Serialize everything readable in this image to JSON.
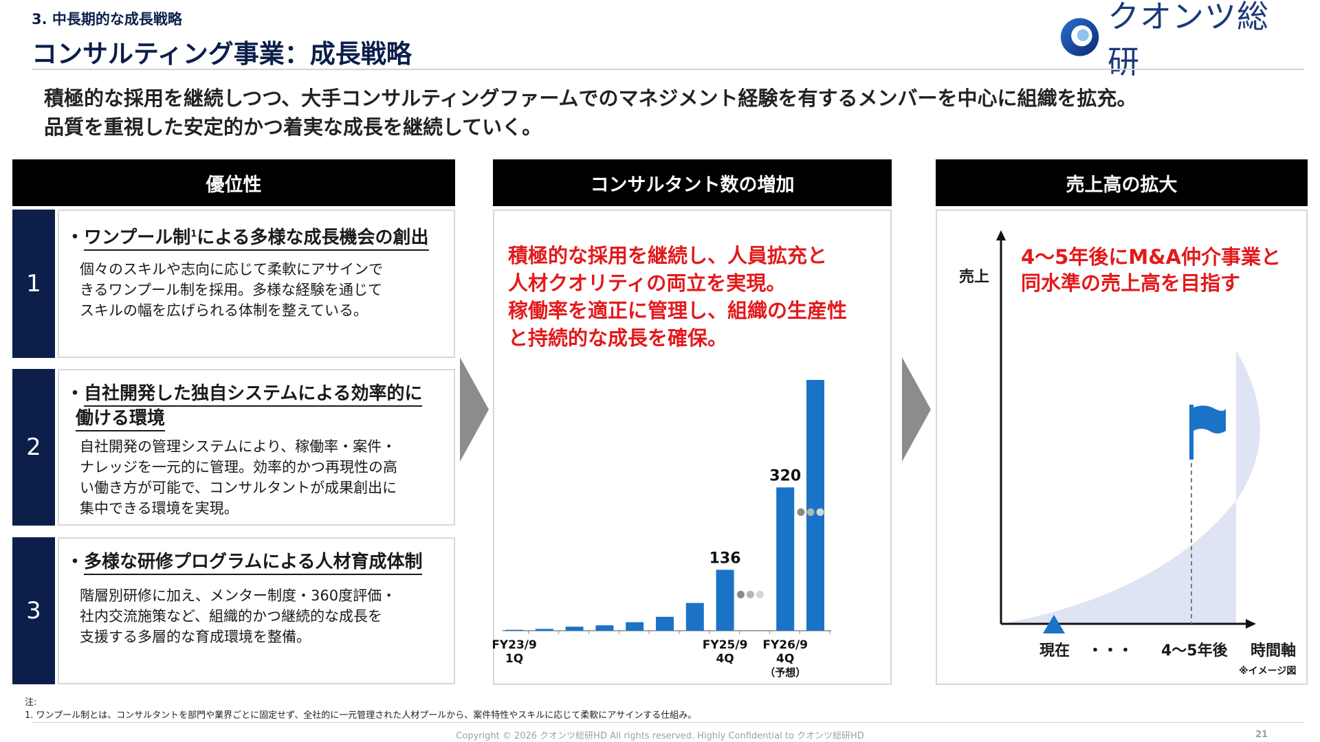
{
  "header": {
    "section_label": "3. 中長期的な成長戦略",
    "title": "コンサルティング事業：成長戦略",
    "logo_text": "クオンツ総研"
  },
  "lead": {
    "line1": "積極的な採用を継続しつつ、大手コンサルティングファームでのマネジメント経験を有するメンバーを中心に組織を拡充。",
    "line2": "品質を重視した安定的かつ着実な成長を継続していく。"
  },
  "columns": {
    "advantages_title": "優位性",
    "consultants_title": "コンサルタント数の増加",
    "sales_title": "売上高の拡大"
  },
  "advantages": [
    {
      "number": "1",
      "bullet": "・",
      "title_a": "ワンプール制",
      "title_sup": "1",
      "title_b": "による多様な成長機会の創出",
      "body": [
        "個々のスキルや志向に応じて柔軟にアサインで",
        "きるワンプール制を採用。多様な経験を通じて",
        "スキルの幅を広げられる体制を整えている。"
      ]
    },
    {
      "number": "2",
      "bullet": "・",
      "title_line1": "自社開発した独自システムによる効率的に",
      "title_line2": "働ける環境",
      "body": [
        "自社開発の管理システムにより、稼働率・案件・",
        "ナレッジを一元的に管理。効率的かつ再現性の高",
        "い働き方が可能で、コンサルタントが成果創出に",
        "集中できる環境を実現。"
      ]
    },
    {
      "number": "3",
      "bullet": "・",
      "title": "多様な研修プログラムによる人材育成体制",
      "body": [
        "階層別研修に加え、メンター制度・360度評価・",
        "社内交流施策など、組織的かつ継続的な成長を",
        "支援する多層的な育成環境を整備。"
      ]
    }
  ],
  "consultants": {
    "message": [
      "積極的な採用を継続し、人員拡充と",
      "人材クオリティの両立を実現。",
      "稼働率を適正に管理し、組織の生産性",
      "と持続的な成長を確保。"
    ],
    "accent_color": "#e3191b",
    "bar_color": "#1a73c7"
  },
  "sales": {
    "message": [
      "4〜5年後にM&A仲介事業と",
      "同水準の売上高を目指す"
    ],
    "y_axis_label": "売上",
    "x_labels": {
      "now": "現在",
      "dots": "・・・",
      "future": "4〜5年後",
      "axis": "時間軸"
    },
    "note": "※イメージ図",
    "area_color": "#dfe4f4",
    "flag_color": "#1a73c7"
  },
  "chart_data": {
    "type": "bar",
    "categories": [
      "FY23/9 1Q",
      "",
      "",
      "",
      "",
      "",
      "",
      "FY25/9 4Q",
      "",
      "FY26/9 4Q (予想)",
      ""
    ],
    "values": [
      2,
      4,
      9,
      12,
      19,
      31,
      62,
      136,
      null,
      320,
      560
    ],
    "data_labels": {
      "7": "136",
      "9": "320"
    },
    "tick_labels": [
      {
        "index": 0,
        "lines": [
          "FY23/9",
          "1Q"
        ]
      },
      {
        "index": 7,
        "lines": [
          "FY25/9",
          "4Q"
        ]
      },
      {
        "index": 9,
        "lines": [
          "FY26/9",
          "4Q",
          "（予想）"
        ]
      }
    ],
    "gap_markers": [
      8,
      10
    ],
    "title": "",
    "xlabel": "",
    "ylabel": ""
  },
  "footer": {
    "note_label": "注:",
    "note_1": "1.  ワンプール制とは、コンサルタントを部門や業界ごとに固定せず、全社的に一元管理された人材プールから、案件特性やスキルに応じて柔軟にアサインする仕組み。",
    "copyright": "Copyright © 2026 クオンツ総研HD All rights reserved. Highly Confidential to クオンツ総研HD",
    "page_number": "21"
  }
}
